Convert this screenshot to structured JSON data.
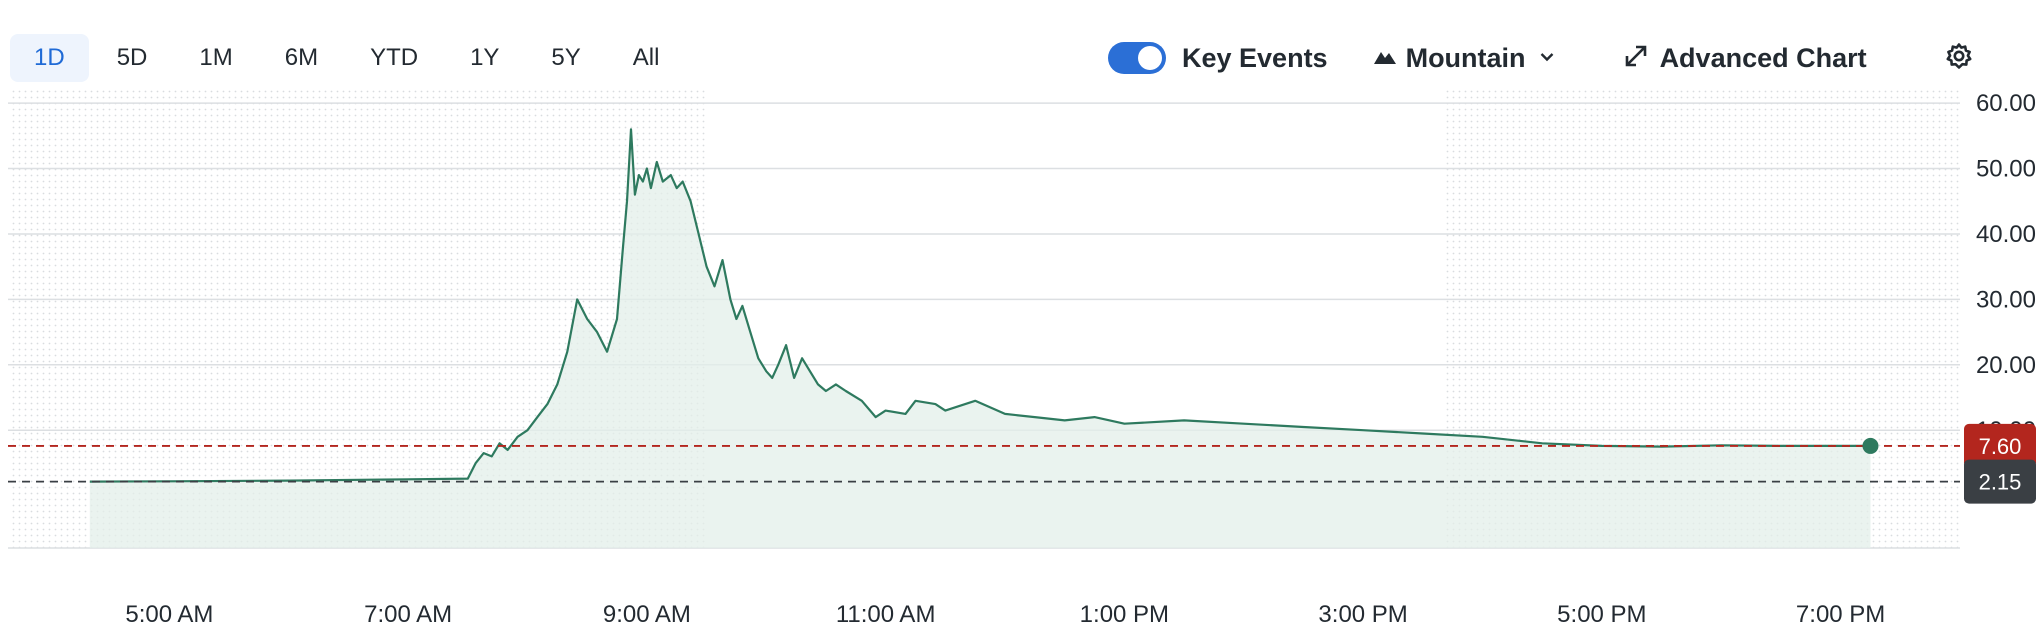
{
  "toolbar": {
    "ranges": [
      "1D",
      "5D",
      "1M",
      "6M",
      "YTD",
      "1Y",
      "5Y",
      "All"
    ],
    "active_range": "1D",
    "key_events_label": "Key Events",
    "key_events_on": true,
    "chart_type_label": "Mountain",
    "advanced_chart_label": "Advanced Chart"
  },
  "colors": {
    "line": "#2e7a5f",
    "fill": "#e3efe9",
    "active_tab": "#1f6ad6",
    "toggle": "#2b6fd6",
    "current_price_badge": "#b3261e",
    "prev_close_badge": "#3a3f44"
  },
  "icons": {
    "chart_type": "mountain-icon",
    "chart_type_dropdown": "chevron-down-icon",
    "advanced_chart": "expand-arrows-icon",
    "settings": "gear-icon"
  },
  "chart_data": {
    "type": "area",
    "x_ticks": [
      "5:00 AM",
      "7:00 AM",
      "9:00 AM",
      "11:00 AM",
      "1:00 PM",
      "3:00 PM",
      "5:00 PM",
      "7:00 PM"
    ],
    "y_ticks": [
      "60.00",
      "50.00",
      "40.00",
      "30.00",
      "20.00",
      "10.00"
    ],
    "ylim": [
      -8,
      62
    ],
    "x_range": [
      "4:00 AM",
      "8:00 PM"
    ],
    "grid": true,
    "extended_hours_shading": [
      [
        "4:00 AM",
        "9:30 AM"
      ],
      [
        "4:00 PM",
        "8:00 PM"
      ]
    ],
    "current_price": 7.6,
    "current_price_label": "7.60",
    "previous_close": 2.15,
    "previous_close_label": "2.15",
    "series": [
      {
        "x": [
          "4:20 AM",
          "5:00 AM",
          "6:00 AM",
          "7:00 AM",
          "7:30 AM",
          "7:34 AM",
          "7:38 AM",
          "7:42 AM",
          "7:46 AM",
          "7:50 AM",
          "7:55 AM",
          "8:00 AM",
          "8:05 AM",
          "8:10 AM",
          "8:15 AM",
          "8:20 AM",
          "8:25 AM",
          "8:30 AM",
          "8:35 AM",
          "8:40 AM",
          "8:45 AM",
          "8:48 AM",
          "8:50 AM",
          "8:52 AM",
          "8:54 AM",
          "8:56 AM",
          "8:58 AM",
          "9:00 AM",
          "9:02 AM",
          "9:05 AM",
          "9:08 AM",
          "9:12 AM",
          "9:15 AM",
          "9:18 AM",
          "9:22 AM",
          "9:26 AM",
          "9:30 AM",
          "9:34 AM",
          "9:38 AM",
          "9:42 AM",
          "9:45 AM",
          "9:48 AM",
          "9:52 AM",
          "9:56 AM",
          "10:00 AM",
          "10:03 AM",
          "10:06 AM",
          "10:10 AM",
          "10:14 AM",
          "10:18 AM",
          "10:22 AM",
          "10:26 AM",
          "10:30 AM",
          "10:35 AM",
          "10:40 AM",
          "10:48 AM",
          "10:55 AM",
          "11:00 AM",
          "11:10 AM",
          "11:15 AM",
          "11:25 AM",
          "11:30 AM",
          "11:45 AM",
          "12:00 PM",
          "12:15 PM",
          "12:30 PM",
          "12:45 PM",
          "1:00 PM",
          "1:30 PM",
          "2:00 PM",
          "2:30 PM",
          "3:00 PM",
          "3:30 PM",
          "4:00 PM",
          "4:30 PM",
          "5:00 PM",
          "5:30 PM",
          "6:00 PM",
          "6:30 PM",
          "7:00 PM",
          "7:15 PM"
        ],
        "values": [
          2.15,
          2.2,
          2.3,
          2.5,
          2.6,
          5.0,
          6.5,
          6.0,
          8.0,
          7.0,
          9.0,
          10.0,
          12.0,
          14.0,
          17.0,
          22.0,
          30.0,
          27.0,
          25.0,
          22.0,
          27.0,
          38.0,
          45.0,
          56.0,
          46.0,
          49.0,
          48.0,
          50.0,
          47.0,
          51.0,
          48.0,
          49.0,
          47.0,
          48.0,
          45.0,
          40.0,
          35.0,
          32.0,
          36.0,
          30.0,
          27.0,
          29.0,
          25.0,
          21.0,
          19.0,
          18.0,
          20.0,
          23.0,
          18.0,
          21.0,
          19.0,
          17.0,
          16.0,
          17.0,
          16.0,
          14.5,
          12.0,
          13.0,
          12.5,
          14.5,
          14.0,
          13.0,
          14.5,
          12.5,
          12.0,
          11.5,
          12.0,
          11.0,
          11.5,
          11.0,
          10.5,
          10.0,
          9.5,
          9.0,
          8.0,
          7.6,
          7.5,
          7.7,
          7.6,
          7.6,
          7.6
        ]
      }
    ]
  }
}
